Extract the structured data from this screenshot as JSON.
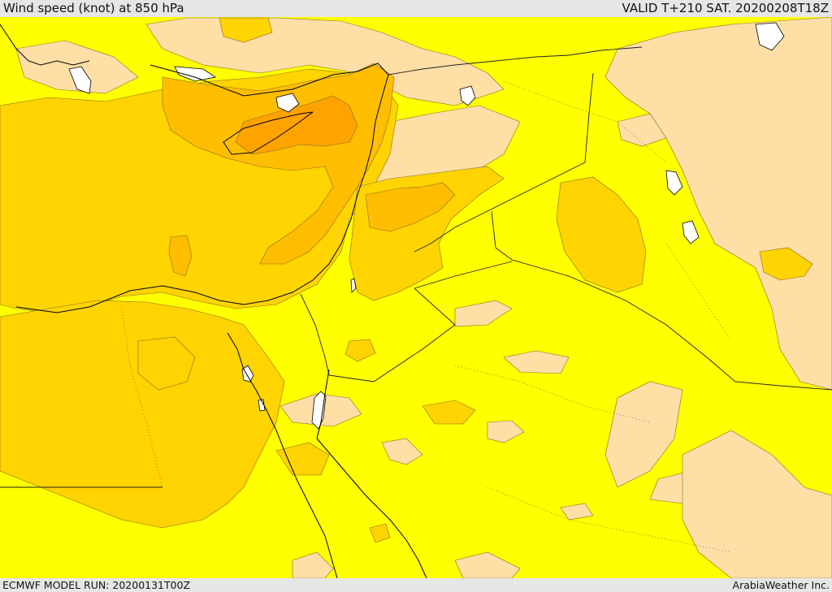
{
  "header": {
    "title": "Wind speed (knot) at 850 hPa",
    "valid": "VALID T+210 SAT. 20200208T18Z"
  },
  "map": {
    "levels": {
      "weak": "#ffdfa6",
      "mid": "#ffff00",
      "strong": "#ffd400",
      "stronger": "#ffbe00",
      "strongest": "#ffa300"
    },
    "boundary_color": "#000000",
    "water_color": "#ffffff"
  },
  "footer": {
    "model_run": "ECMWF MODEL RUN: 20200131T00Z",
    "credit": "ArabiaWeather Inc."
  }
}
